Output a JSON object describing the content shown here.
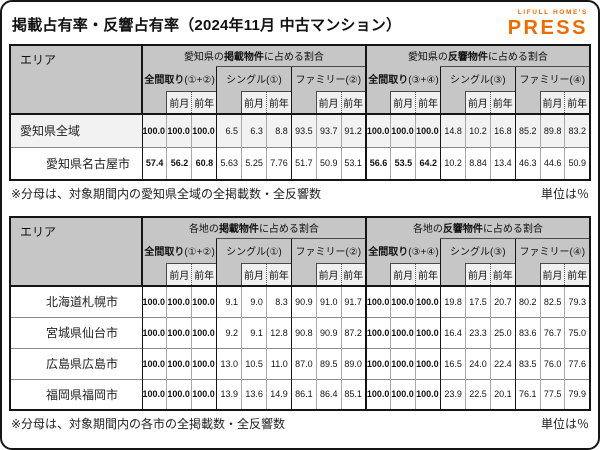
{
  "page": {
    "title": "掲載占有率・反響占有率（2024年11月 中古マンション）",
    "logo": {
      "top": "LIFULL HOME'S",
      "main": "PRESS",
      "color": "#ED6C00"
    }
  },
  "tables": [
    {
      "area_header": "エリア",
      "sections": [
        {
          "prefix": "愛知県の",
          "bold": "掲載物件",
          "suffix": "に占める割合"
        },
        {
          "prefix": "愛知県の",
          "bold": "反響物件",
          "suffix": "に占める割合"
        }
      ],
      "groups": [
        {
          "name": "全間取り",
          "suffix": "(①+②)",
          "bold": true
        },
        {
          "name": "シングル",
          "suffix": "(①)",
          "bold": false
        },
        {
          "name": "ファミリー",
          "suffix": "(②)",
          "bold": false
        },
        {
          "name": "全間取り",
          "suffix": "(③+④)",
          "bold": true
        },
        {
          "name": "シングル",
          "suffix": "(③)",
          "bold": false
        },
        {
          "name": "ファミリー",
          "suffix": "(④)",
          "bold": false
        }
      ],
      "sub_headers": [
        "前月",
        "前年"
      ],
      "rows": [
        {
          "area": "愛知県全域",
          "indent": false,
          "highlight": true,
          "values": [
            "100.0",
            "100.0",
            "100.0",
            "6.5",
            "6.3",
            "8.8",
            "93.5",
            "93.7",
            "91.2",
            "100.0",
            "100.0",
            "100.0",
            "14.8",
            "10.2",
            "16.8",
            "85.2",
            "89.8",
            "83.2"
          ]
        },
        {
          "area": "愛知県名古屋市",
          "indent": true,
          "highlight": false,
          "values": [
            "57.4",
            "56.2",
            "60.8",
            "5.63",
            "5.25",
            "7.76",
            "51.7",
            "50.9",
            "53.1",
            "56.6",
            "53.5",
            "64.2",
            "10.2",
            "8.84",
            "13.4",
            "46.3",
            "44.6",
            "50.9"
          ]
        }
      ],
      "note": "※分母は、対象期間内の愛知県全域の全掲載数・全反響数",
      "unit": "単位は％"
    },
    {
      "area_header": "エリア",
      "sections": [
        {
          "prefix": "各地の",
          "bold": "掲載物件",
          "suffix": "に占める割合"
        },
        {
          "prefix": "各地の",
          "bold": "反響物件",
          "suffix": "に占める割合"
        }
      ],
      "groups": [
        {
          "name": "全間取り",
          "suffix": "(①+②)",
          "bold": true
        },
        {
          "name": "シングル",
          "suffix": "(①)",
          "bold": false
        },
        {
          "name": "ファミリー",
          "suffix": "(②)",
          "bold": false
        },
        {
          "name": "全間取り",
          "suffix": "(③+④)",
          "bold": true
        },
        {
          "name": "シングル",
          "suffix": "(③)",
          "bold": false
        },
        {
          "name": "ファミリー",
          "suffix": "(④)",
          "bold": false
        }
      ],
      "sub_headers": [
        "前月",
        "前年"
      ],
      "rows": [
        {
          "area": "北海道札幌市",
          "indent": true,
          "highlight": false,
          "values": [
            "100.0",
            "100.0",
            "100.0",
            "9.1",
            "9.0",
            "8.3",
            "90.9",
            "91.0",
            "91.7",
            "100.0",
            "100.0",
            "100.0",
            "19.8",
            "17.5",
            "20.7",
            "80.2",
            "82.5",
            "79.3"
          ]
        },
        {
          "area": "宮城県仙台市",
          "indent": true,
          "highlight": false,
          "values": [
            "100.0",
            "100.0",
            "100.0",
            "9.2",
            "9.1",
            "12.8",
            "90.8",
            "90.9",
            "87.2",
            "100.0",
            "100.0",
            "100.0",
            "16.4",
            "23.3",
            "25.0",
            "83.6",
            "76.7",
            "75.0"
          ]
        },
        {
          "area": "広島県広島市",
          "indent": true,
          "highlight": false,
          "values": [
            "100.0",
            "100.0",
            "100.0",
            "13.0",
            "10.5",
            "11.0",
            "87.0",
            "89.5",
            "89.0",
            "100.0",
            "100.0",
            "100.0",
            "16.5",
            "24.0",
            "22.4",
            "83.5",
            "76.0",
            "77.6"
          ]
        },
        {
          "area": "福岡県福岡市",
          "indent": true,
          "highlight": false,
          "values": [
            "100.0",
            "100.0",
            "100.0",
            "13.9",
            "13.6",
            "14.9",
            "86.1",
            "86.4",
            "85.1",
            "100.0",
            "100.0",
            "100.0",
            "23.9",
            "22.5",
            "20.1",
            "76.1",
            "77.5",
            "79.9"
          ]
        }
      ],
      "note": "※分母は、対象期間内の各市の全掲載数・全反響数",
      "unit": "単位は％"
    }
  ]
}
